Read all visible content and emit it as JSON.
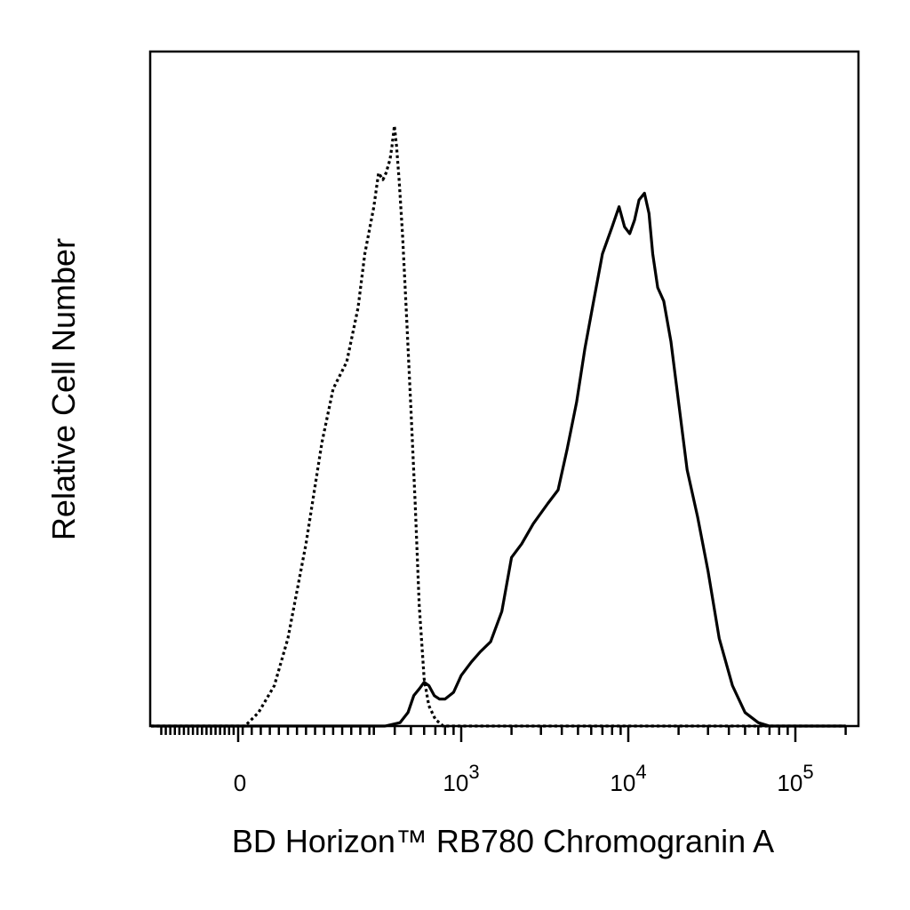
{
  "chart_data": {
    "type": "area",
    "xlabel": "BD Horizon™ RB780 Chromogranin A",
    "ylabel": "Relative Cell Number",
    "x_scale": "biexponential",
    "xlim": [
      -200,
      200000
    ],
    "ylim": [
      0,
      100
    ],
    "x_tick_labels": [
      {
        "value": 0,
        "label": "0"
      },
      {
        "value": 1000,
        "base": "10",
        "exp": "3"
      },
      {
        "value": 10000,
        "base": "10",
        "exp": "4"
      },
      {
        "value": 100000,
        "base": "10",
        "exp": "5"
      }
    ],
    "grid": false,
    "legend": "none",
    "series": [
      {
        "style": "dotted",
        "color": "#000000",
        "points": [
          [
            -200,
            0
          ],
          [
            -30,
            0
          ],
          [
            15,
            0
          ],
          [
            45,
            2
          ],
          [
            80,
            6
          ],
          [
            110,
            13
          ],
          [
            150,
            27
          ],
          [
            185,
            42
          ],
          [
            210,
            50
          ],
          [
            240,
            54
          ],
          [
            265,
            62
          ],
          [
            280,
            70
          ],
          [
            300,
            77
          ],
          [
            320,
            82
          ],
          [
            340,
            81
          ],
          [
            355,
            82
          ],
          [
            375,
            84
          ],
          [
            385,
            86
          ],
          [
            398,
            89
          ],
          [
            410,
            86
          ],
          [
            425,
            81
          ],
          [
            445,
            73
          ],
          [
            470,
            61
          ],
          [
            500,
            47
          ],
          [
            530,
            33
          ],
          [
            560,
            18
          ],
          [
            600,
            7
          ],
          [
            640,
            3
          ],
          [
            700,
            1
          ],
          [
            780,
            0
          ],
          [
            1000,
            0
          ],
          [
            200000,
            0
          ]
        ]
      },
      {
        "style": "solid",
        "color": "#000000",
        "points": [
          [
            -200,
            0
          ],
          [
            350,
            0
          ],
          [
            430,
            0.5
          ],
          [
            480,
            2
          ],
          [
            520,
            4.5
          ],
          [
            560,
            5.5
          ],
          [
            600,
            6.5
          ],
          [
            640,
            6
          ],
          [
            690,
            4.5
          ],
          [
            740,
            4
          ],
          [
            800,
            4
          ],
          [
            900,
            5
          ],
          [
            1000,
            7.5
          ],
          [
            1150,
            9.5
          ],
          [
            1300,
            11
          ],
          [
            1500,
            12.5
          ],
          [
            1750,
            17
          ],
          [
            2000,
            25
          ],
          [
            2300,
            27
          ],
          [
            2700,
            30
          ],
          [
            3300,
            33
          ],
          [
            3800,
            35
          ],
          [
            4300,
            41
          ],
          [
            4900,
            48
          ],
          [
            5500,
            56
          ],
          [
            6200,
            63
          ],
          [
            7000,
            70
          ],
          [
            8000,
            74
          ],
          [
            8800,
            77
          ],
          [
            9500,
            74
          ],
          [
            10200,
            73
          ],
          [
            10900,
            75
          ],
          [
            11600,
            78
          ],
          [
            12500,
            79
          ],
          [
            13300,
            76
          ],
          [
            14000,
            70
          ],
          [
            15000,
            65
          ],
          [
            16300,
            63
          ],
          [
            18000,
            57
          ],
          [
            20000,
            48
          ],
          [
            22500,
            38
          ],
          [
            26000,
            31
          ],
          [
            30000,
            23
          ],
          [
            35000,
            13
          ],
          [
            42000,
            6
          ],
          [
            50000,
            2
          ],
          [
            60000,
            0.5
          ],
          [
            70000,
            0
          ],
          [
            200000,
            0
          ]
        ]
      }
    ]
  }
}
